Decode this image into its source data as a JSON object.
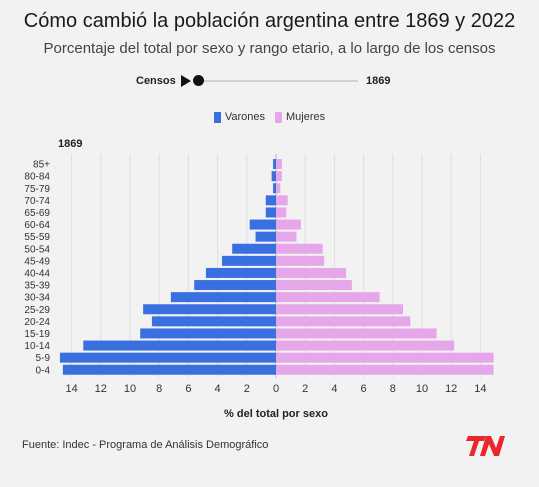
{
  "header": {
    "title": "Cómo cambió la población argentina entre 1869 y 2022",
    "subtitle": "Porcentaje del total por sexo y rango etario, a lo largo de los censos"
  },
  "slider": {
    "label": "Censos",
    "value": "1869"
  },
  "legend": {
    "male": "Varones",
    "female": "Mujeres"
  },
  "colors": {
    "male": "#3a6fe0",
    "female": "#e6a6ea",
    "logo": "#e8262c"
  },
  "footer": {
    "source": "Fuente: Indec - Programa de Análisis Demográfico"
  },
  "chart_data": {
    "type": "bar",
    "orientation": "horizontal",
    "year": "1869",
    "categories": [
      "85+",
      "80-84",
      "75-79",
      "70-74",
      "65-69",
      "60-64",
      "55-59",
      "50-54",
      "45-49",
      "40-44",
      "35-39",
      "30-34",
      "25-29",
      "20-24",
      "15-19",
      "10-14",
      "5-9",
      "0-4"
    ],
    "series": [
      {
        "name": "Varones",
        "values": [
          0.2,
          0.3,
          0.2,
          0.7,
          0.7,
          1.8,
          1.4,
          3.0,
          3.7,
          4.8,
          5.6,
          7.2,
          9.1,
          8.5,
          9.3,
          13.2,
          14.8,
          14.6
        ]
      },
      {
        "name": "Mujeres",
        "values": [
          0.4,
          0.4,
          0.3,
          0.8,
          0.7,
          1.7,
          1.4,
          3.2,
          3.3,
          4.8,
          5.2,
          7.1,
          8.7,
          9.2,
          11.0,
          12.2,
          14.9,
          14.9
        ]
      }
    ],
    "xlabel": "% del total por sexo",
    "xticks": [
      "14",
      "12",
      "10",
      "8",
      "6",
      "4",
      "2",
      "0",
      "2",
      "4",
      "6",
      "8",
      "10",
      "12",
      "14"
    ],
    "xlim": [
      -15,
      15
    ],
    "grid": true
  }
}
